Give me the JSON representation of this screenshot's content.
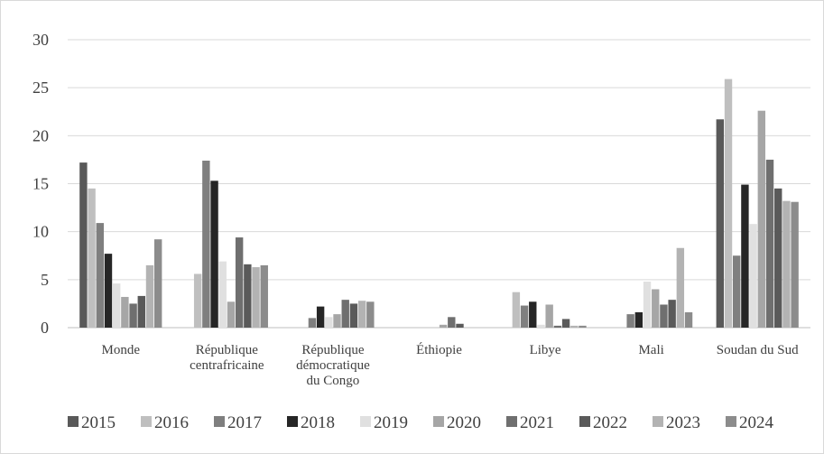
{
  "chart_data": {
    "type": "bar",
    "title": "",
    "xlabel": "",
    "ylabel": "",
    "ylim": [
      0,
      30
    ],
    "yticks": [
      0,
      5,
      10,
      15,
      20,
      25,
      30
    ],
    "grid": true,
    "legend_position": "bottom",
    "categories": [
      [
        "Monde"
      ],
      [
        "République",
        "centrafricaine"
      ],
      [
        "République",
        "démocratique",
        "du Congo"
      ],
      [
        "Éthiopie"
      ],
      [
        "Libye"
      ],
      [
        "Mali"
      ],
      [
        "Soudan du Sud"
      ]
    ],
    "series": [
      {
        "name": "2015",
        "color": "#595959",
        "values": [
          17.2,
          0,
          0,
          0,
          0,
          0,
          21.7
        ]
      },
      {
        "name": "2016",
        "color": "#bfbfbf",
        "values": [
          14.5,
          5.6,
          0,
          0,
          3.7,
          0,
          25.9
        ]
      },
      {
        "name": "2017",
        "color": "#7f7f7f",
        "values": [
          10.9,
          17.4,
          1.0,
          0,
          2.3,
          1.4,
          7.5
        ]
      },
      {
        "name": "2018",
        "color": "#262626",
        "values": [
          7.7,
          15.3,
          2.2,
          0,
          2.7,
          1.6,
          14.9
        ]
      },
      {
        "name": "2019",
        "color": "#e0e0e0",
        "values": [
          4.6,
          6.9,
          1.1,
          0,
          0.3,
          4.8,
          10.8
        ]
      },
      {
        "name": "2020",
        "color": "#a6a6a6",
        "values": [
          3.2,
          2.7,
          1.4,
          0.3,
          2.4,
          4.0,
          22.6
        ]
      },
      {
        "name": "2021",
        "color": "#6f6f6f",
        "values": [
          2.5,
          9.4,
          2.9,
          1.1,
          0.2,
          2.4,
          17.5
        ]
      },
      {
        "name": "2022",
        "color": "#5a5a5a",
        "values": [
          3.3,
          6.6,
          2.5,
          0.4,
          0.9,
          2.9,
          14.5
        ]
      },
      {
        "name": "2023",
        "color": "#b3b3b3",
        "values": [
          6.5,
          6.3,
          2.8,
          0,
          0.2,
          8.3,
          13.2
        ]
      },
      {
        "name": "2024",
        "color": "#8c8c8c",
        "values": [
          9.2,
          6.5,
          2.7,
          0,
          0.2,
          1.6,
          13.1
        ]
      }
    ]
  }
}
